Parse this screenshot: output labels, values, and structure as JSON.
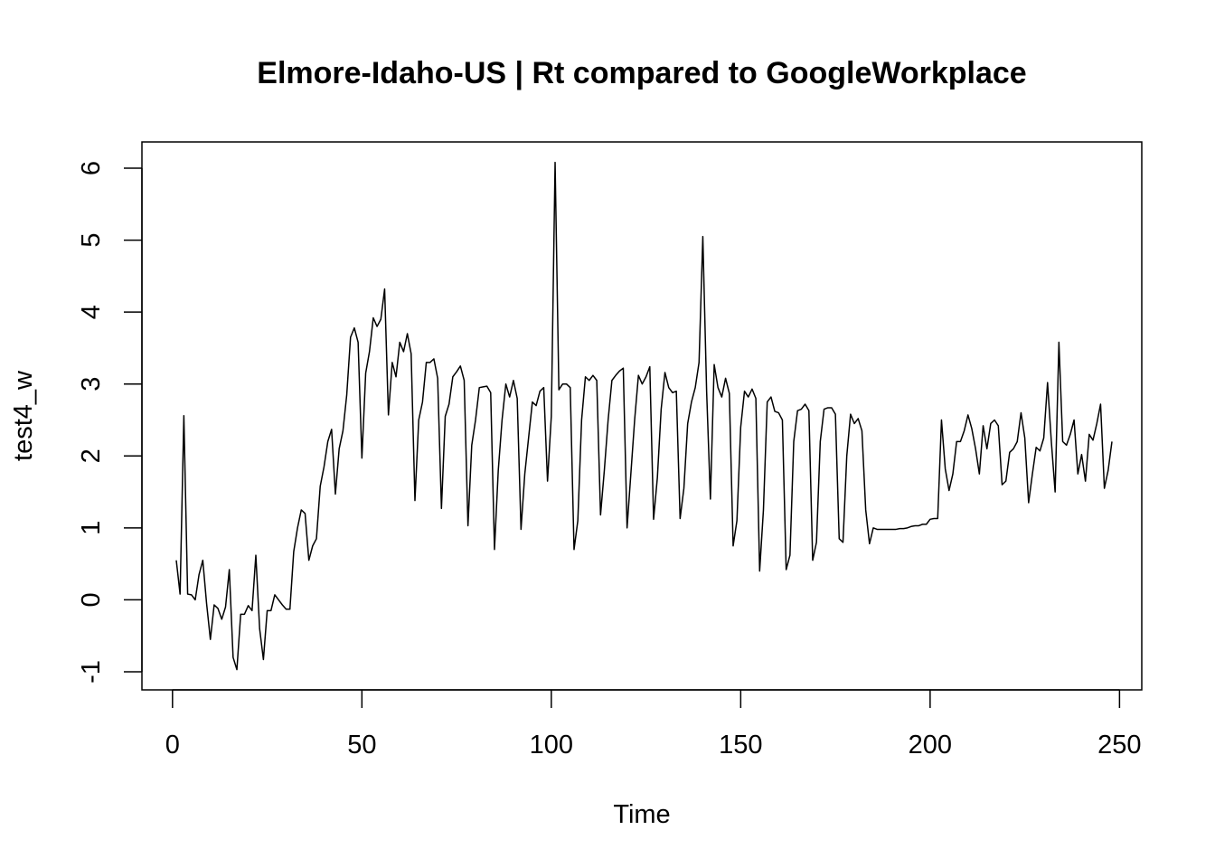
{
  "chart_data": {
    "type": "line",
    "title": "Elmore-Idaho-US | Rt compared to GoogleWorkplace",
    "xlabel": "Time",
    "ylabel": "test4_w",
    "xlim": [
      1,
      248
    ],
    "ylim": [
      -1,
      6.08
    ],
    "x_ticks": [
      0,
      50,
      100,
      150,
      200,
      250
    ],
    "y_ticks": [
      -1,
      0,
      1,
      2,
      3,
      4,
      5,
      6
    ],
    "grid": false,
    "legend": "none",
    "line_color": "#000000",
    "series": [
      {
        "x_start": 1,
        "values": [
          0.55,
          0.08,
          2.56,
          0.08,
          0.07,
          0.0,
          0.35,
          0.55,
          -0.05,
          -0.55,
          -0.07,
          -0.12,
          -0.27,
          -0.1,
          0.42,
          -0.8,
          -0.97,
          -0.2,
          -0.2,
          -0.08,
          -0.15,
          0.62,
          -0.4,
          -0.83,
          -0.15,
          -0.15,
          0.07,
          0.0,
          -0.07,
          -0.13,
          -0.13,
          0.67,
          1.0,
          1.25,
          1.2,
          0.55,
          0.75,
          0.85,
          1.58,
          1.85,
          2.2,
          2.37,
          1.47,
          2.1,
          2.35,
          2.85,
          3.65,
          3.78,
          3.58,
          1.97,
          3.15,
          3.45,
          3.92,
          3.8,
          3.9,
          4.32,
          2.57,
          3.3,
          3.1,
          3.58,
          3.45,
          3.7,
          3.42,
          1.38,
          2.5,
          2.75,
          3.3,
          3.3,
          3.35,
          3.08,
          1.27,
          2.55,
          2.72,
          3.1,
          3.17,
          3.25,
          3.05,
          1.03,
          2.15,
          2.5,
          2.95,
          2.96,
          2.97,
          2.88,
          0.7,
          1.8,
          2.5,
          3.0,
          2.82,
          3.05,
          2.8,
          0.98,
          1.75,
          2.25,
          2.75,
          2.7,
          2.9,
          2.95,
          1.65,
          2.55,
          6.08,
          2.92,
          3.0,
          3.0,
          2.95,
          0.7,
          1.1,
          2.5,
          3.1,
          3.05,
          3.12,
          3.05,
          1.18,
          1.8,
          2.5,
          3.05,
          3.12,
          3.18,
          3.22,
          1.0,
          1.75,
          2.5,
          3.12,
          3.0,
          3.1,
          3.24,
          1.12,
          1.7,
          2.65,
          3.16,
          2.95,
          2.88,
          2.9,
          1.13,
          1.55,
          2.45,
          2.75,
          2.95,
          3.3,
          5.05,
          2.9,
          1.4,
          3.27,
          2.95,
          2.82,
          3.08,
          2.87,
          0.75,
          1.1,
          2.4,
          2.9,
          2.82,
          2.93,
          2.8,
          0.4,
          1.25,
          2.75,
          2.82,
          2.62,
          2.6,
          2.5,
          0.42,
          0.62,
          2.2,
          2.63,
          2.65,
          2.72,
          2.63,
          0.55,
          0.8,
          2.2,
          2.65,
          2.67,
          2.67,
          2.58,
          0.85,
          0.8,
          2.0,
          2.58,
          2.45,
          2.52,
          2.35,
          1.25,
          0.78,
          1.0,
          0.98,
          0.98,
          0.98,
          0.98,
          0.98,
          0.98,
          0.99,
          0.99,
          1.0,
          1.02,
          1.03,
          1.03,
          1.05,
          1.05,
          1.12,
          1.13,
          1.13,
          2.5,
          1.82,
          1.52,
          1.75,
          2.2,
          2.2,
          2.35,
          2.57,
          2.38,
          2.1,
          1.75,
          2.42,
          2.1,
          2.45,
          2.5,
          2.42,
          1.6,
          1.65,
          2.05,
          2.1,
          2.2,
          2.6,
          2.25,
          1.35,
          1.75,
          2.12,
          2.07,
          2.25,
          3.02,
          2.2,
          1.5,
          3.58,
          2.2,
          2.15,
          2.3,
          2.5,
          1.75,
          2.02,
          1.65,
          2.3,
          2.22,
          2.45,
          2.72,
          1.55,
          1.8,
          2.2
        ]
      }
    ]
  }
}
